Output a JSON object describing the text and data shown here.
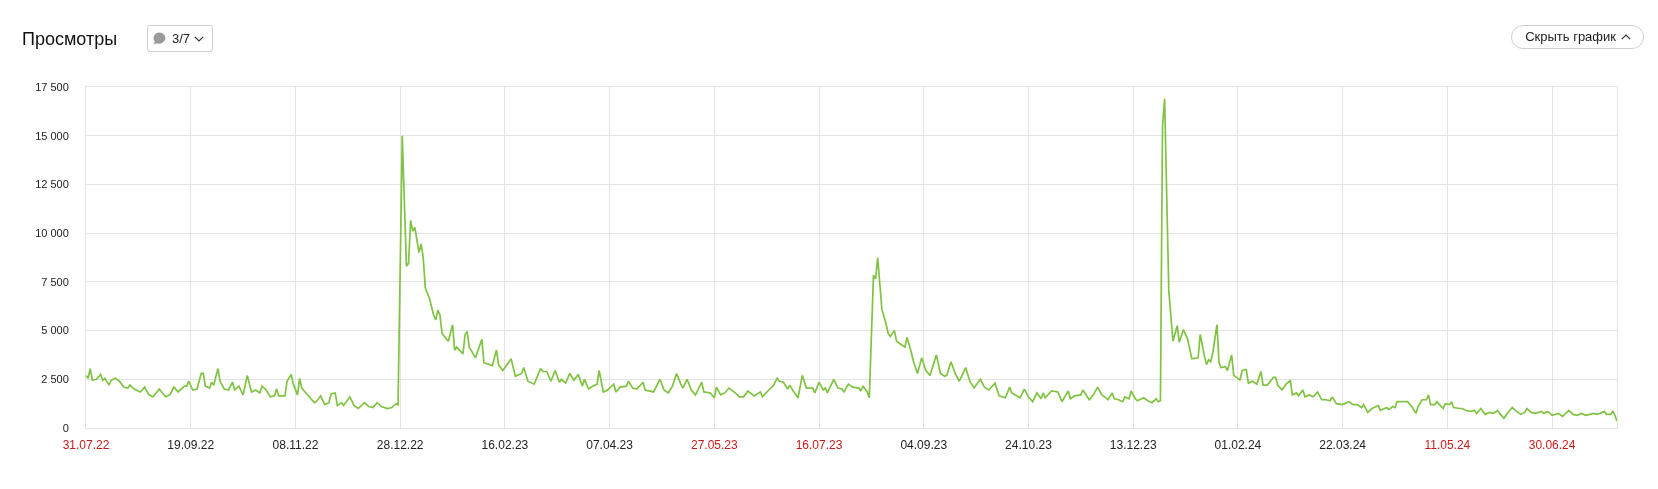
{
  "chart_data": {
    "type": "line",
    "title": "Просмотры",
    "annotations": [
      "3/7",
      "Скрыть график"
    ],
    "x": [
      "2022-07-31",
      "2022-08-01",
      "2022-08-02",
      "2022-08-03",
      "2022-08-05",
      "2022-08-07",
      "2022-08-08",
      "2022-08-09",
      "2022-08-11",
      "2022-08-12",
      "2022-08-14",
      "2022-08-16",
      "2022-08-18",
      "2022-08-20",
      "2022-08-21",
      "2022-08-23",
      "2022-08-26",
      "2022-08-28",
      "2022-08-30",
      "2022-09-01",
      "2022-09-04",
      "2022-09-07",
      "2022-09-09",
      "2022-09-11",
      "2022-09-13",
      "2022-09-16",
      "2022-09-17",
      "2022-09-18",
      "2022-09-20",
      "2022-09-22",
      "2022-09-24",
      "2022-09-25",
      "2022-09-26",
      "2022-09-28",
      "2022-09-29",
      "2022-09-30",
      "2022-10-02",
      "2022-10-03",
      "2022-10-05",
      "2022-10-07",
      "2022-10-09",
      "2022-10-10",
      "2022-10-12",
      "2022-10-14",
      "2022-10-16",
      "2022-10-18",
      "2022-10-20",
      "2022-10-22",
      "2022-10-23",
      "2022-10-25",
      "2022-10-27",
      "2022-10-29",
      "2022-10-30",
      "2022-10-31",
      "2022-11-03",
      "2022-11-04",
      "2022-11-06",
      "2022-11-07",
      "2022-11-09",
      "2022-11-10",
      "2022-11-11",
      "2022-11-13",
      "2022-11-15",
      "2022-11-17",
      "2022-11-18",
      "2022-11-20",
      "2022-11-22",
      "2022-11-24",
      "2022-11-25",
      "2022-11-27",
      "2022-11-28",
      "2022-11-30",
      "2022-12-01",
      "2022-12-04",
      "2022-12-06",
      "2022-12-08",
      "2022-12-11",
      "2022-12-13",
      "2022-12-15",
      "2022-12-17",
      "2022-12-19",
      "2022-12-22",
      "2022-12-24",
      "2022-12-26",
      "2022-12-27",
      "2022-12-29",
      "2022-12-31",
      "2023-01-01",
      "2023-01-02",
      "2023-01-03",
      "2023-01-04",
      "2023-01-06",
      "2023-01-07",
      "2023-01-08",
      "2023-01-09",
      "2023-01-11",
      "2023-01-13",
      "2023-01-14",
      "2023-01-15",
      "2023-01-16",
      "2023-01-17",
      "2023-01-20",
      "2023-01-22",
      "2023-01-23",
      "2023-01-24",
      "2023-01-27",
      "2023-01-28",
      "2023-01-29",
      "2023-01-30",
      "2023-02-02",
      "2023-02-05",
      "2023-02-06",
      "2023-02-10",
      "2023-02-12",
      "2023-02-13",
      "2023-02-15",
      "2023-02-19",
      "2023-02-21",
      "2023-02-24",
      "2023-02-25",
      "2023-02-27",
      "2023-03-02",
      "2023-03-05",
      "2023-03-06",
      "2023-03-08",
      "2023-03-10",
      "2023-03-12",
      "2023-03-14",
      "2023-03-15",
      "2023-03-17",
      "2023-03-19",
      "2023-03-21",
      "2023-03-23",
      "2023-03-25",
      "2023-03-26",
      "2023-03-28",
      "2023-03-30",
      "2023-04-01",
      "2023-04-02",
      "2023-04-04",
      "2023-04-06",
      "2023-04-09",
      "2023-04-10",
      "2023-04-12",
      "2023-04-15",
      "2023-04-16",
      "2023-04-18",
      "2023-04-20",
      "2023-04-23",
      "2023-04-24",
      "2023-04-28",
      "2023-05-01",
      "2023-05-03",
      "2023-05-05",
      "2023-05-07",
      "2023-05-09",
      "2023-05-11",
      "2023-05-12",
      "2023-05-14",
      "2023-05-16",
      "2023-05-18",
      "2023-05-21",
      "2023-05-22",
      "2023-05-25",
      "2023-05-27",
      "2023-05-28",
      "2023-05-30",
      "2023-06-01",
      "2023-06-03",
      "2023-06-06",
      "2023-06-08",
      "2023-06-10",
      "2023-06-12",
      "2023-06-15",
      "2023-06-18",
      "2023-06-19",
      "2023-06-22",
      "2023-06-24",
      "2023-06-26",
      "2023-06-27",
      "2023-06-29",
      "2023-07-01",
      "2023-07-02",
      "2023-07-04",
      "2023-07-06",
      "2023-07-08",
      "2023-07-10",
      "2023-07-13",
      "2023-07-14",
      "2023-07-16",
      "2023-07-18",
      "2023-07-19",
      "2023-07-20",
      "2023-07-23",
      "2023-07-25",
      "2023-07-27",
      "2023-07-28",
      "2023-07-30",
      "2023-08-01",
      "2023-08-04",
      "2023-08-05",
      "2023-08-06",
      "2023-08-08",
      "2023-08-09",
      "2023-08-11",
      "2023-08-12",
      "2023-08-13",
      "2023-08-15",
      "2023-08-17",
      "2023-08-18",
      "2023-08-19",
      "2023-08-21",
      "2023-08-22",
      "2023-08-24",
      "2023-08-26",
      "2023-08-27",
      "2023-08-29",
      "2023-08-30",
      "2023-09-01",
      "2023-09-03",
      "2023-09-05",
      "2023-09-07",
      "2023-09-08",
      "2023-09-10",
      "2023-09-12",
      "2023-09-14",
      "2023-09-15",
      "2023-09-17",
      "2023-09-19",
      "2023-09-21",
      "2023-09-24",
      "2023-09-26",
      "2023-09-28",
      "2023-10-01",
      "2023-10-03",
      "2023-10-05",
      "2023-10-08",
      "2023-10-10",
      "2023-10-13",
      "2023-10-15",
      "2023-10-16",
      "2023-10-20",
      "2023-10-22",
      "2023-10-24",
      "2023-10-26",
      "2023-10-28",
      "2023-10-30",
      "2023-10-31",
      "2023-11-01",
      "2023-11-04",
      "2023-11-07",
      "2023-11-09",
      "2023-11-12",
      "2023-11-13",
      "2023-11-15",
      "2023-11-18",
      "2023-11-19",
      "2023-11-22",
      "2023-11-24",
      "2023-11-26",
      "2023-11-28",
      "2023-11-30",
      "2023-12-01",
      "2023-12-03",
      "2023-12-04",
      "2023-12-06",
      "2023-12-08",
      "2023-12-09",
      "2023-12-11",
      "2023-12-12",
      "2023-12-14",
      "2023-12-15",
      "2023-12-18",
      "2023-12-20",
      "2023-12-22",
      "2023-12-24",
      "2023-12-25",
      "2023-12-26",
      "2023-12-27",
      "2023-12-28",
      "2023-12-30",
      "2024-01-01",
      "2024-01-03",
      "2024-01-04",
      "2024-01-06",
      "2024-01-08",
      "2024-01-10",
      "2024-01-13",
      "2024-01-14",
      "2024-01-16",
      "2024-01-17",
      "2024-01-18",
      "2024-01-19",
      "2024-01-20",
      "2024-01-22",
      "2024-01-23",
      "2024-01-24",
      "2024-01-26",
      "2024-01-27",
      "2024-01-29",
      "2024-01-30",
      "2024-02-01",
      "2024-02-02",
      "2024-02-03",
      "2024-02-05",
      "2024-02-06",
      "2024-02-08",
      "2024-02-10",
      "2024-02-12",
      "2024-02-13",
      "2024-02-15",
      "2024-02-18",
      "2024-02-19",
      "2024-02-20",
      "2024-02-22",
      "2024-02-24",
      "2024-02-26",
      "2024-02-27",
      "2024-02-29",
      "2024-03-01",
      "2024-03-03",
      "2024-03-04",
      "2024-03-06",
      "2024-03-08",
      "2024-03-10",
      "2024-03-12",
      "2024-03-14",
      "2024-03-16",
      "2024-03-17",
      "2024-03-19",
      "2024-03-22",
      "2024-03-25",
      "2024-03-27",
      "2024-03-29",
      "2024-03-31",
      "2024-04-01",
      "2024-04-03",
      "2024-04-05",
      "2024-04-08",
      "2024-04-09",
      "2024-04-12",
      "2024-04-13",
      "2024-04-15",
      "2024-04-16",
      "2024-04-17",
      "2024-04-20",
      "2024-04-22",
      "2024-04-24",
      "2024-04-26",
      "2024-04-27",
      "2024-04-29",
      "2024-05-01",
      "2024-05-02",
      "2024-05-03",
      "2024-05-05",
      "2024-05-06",
      "2024-05-09",
      "2024-05-10",
      "2024-05-12",
      "2024-05-13",
      "2024-05-14",
      "2024-05-17",
      "2024-05-18",
      "2024-05-20",
      "2024-05-22",
      "2024-05-24",
      "2024-05-25",
      "2024-05-27",
      "2024-05-29",
      "2024-05-31",
      "2024-06-02",
      "2024-06-04",
      "2024-06-05",
      "2024-06-07",
      "2024-06-09",
      "2024-06-11",
      "2024-06-13",
      "2024-06-15",
      "2024-06-17",
      "2024-06-18",
      "2024-06-20",
      "2024-06-22",
      "2024-06-25",
      "2024-06-26",
      "2024-06-28",
      "2024-06-30",
      "2024-07-03",
      "2024-07-05",
      "2024-07-08",
      "2024-07-10",
      "2024-07-12",
      "2024-07-14",
      "2024-07-16",
      "2024-07-18",
      "2024-07-20",
      "2024-07-21",
      "2024-07-23",
      "2024-07-25",
      "2024-07-26",
      "2024-07-28",
      "2024-07-29",
      "2024-07-30",
      "2024-07-31"
    ],
    "values": [
      2700,
      2550,
      3050,
      2450,
      2500,
      2750,
      2450,
      2550,
      2200,
      2450,
      2550,
      2400,
      2100,
      2050,
      2200,
      2000,
      1850,
      2100,
      1700,
      1600,
      2000,
      1600,
      1700,
      2100,
      1850,
      2150,
      2150,
      2400,
      1950,
      2000,
      2800,
      2800,
      2150,
      2050,
      2350,
      2200,
      3050,
      2400,
      2000,
      1950,
      2350,
      1950,
      2150,
      1700,
      2700,
      1850,
      1950,
      1800,
      2150,
      1950,
      1600,
      1650,
      2000,
      1650,
      1650,
      2400,
      2750,
      2250,
      1700,
      2550,
      2050,
      1800,
      1550,
      1300,
      1350,
      1650,
      1200,
      1300,
      1750,
      1800,
      1150,
      1300,
      1150,
      1600,
      1150,
      1000,
      1300,
      1100,
      1050,
      1300,
      1100,
      1000,
      1050,
      1250,
      1200,
      15000,
      8300,
      8450,
      10650,
      10100,
      10300,
      9000,
      9450,
      8750,
      7200,
      6650,
      5800,
      5550,
      6050,
      5800,
      4850,
      4450,
      5300,
      4000,
      4150,
      3800,
      4800,
      4950,
      4150,
      3600,
      4550,
      3350,
      3200,
      4000,
      3250,
      2950,
      3550,
      2650,
      2800,
      3100,
      2400,
      2250,
      3050,
      2900,
      2900,
      2400,
      2950,
      2350,
      2500,
      2300,
      2800,
      2450,
      2750,
      2150,
      2500,
      2000,
      2150,
      2250,
      2950,
      1850,
      1950,
      2250,
      1850,
      2100,
      2150,
      2400,
      2050,
      2000,
      2350,
      1950,
      1850,
      2500,
      1950,
      1800,
      2150,
      2800,
      2250,
      2050,
      2500,
      1950,
      1700,
      2350,
      1850,
      1800,
      1550,
      2100,
      1700,
      1800,
      2050,
      1800,
      1600,
      1600,
      1900,
      1650,
      1850,
      1600,
      1950,
      2150,
      2550,
      2400,
      2350,
      2000,
      2200,
      1850,
      1550,
      2700,
      2050,
      2050,
      1800,
      2350,
      1950,
      2050,
      1800,
      2500,
      2050,
      2000,
      1850,
      2250,
      2100,
      2050,
      1900,
      2150,
      1850,
      1550,
      7850,
      7650,
      8750,
      6100,
      5350,
      4850,
      4700,
      5000,
      4450,
      4300,
      4150,
      4650,
      3900,
      3450,
      2800,
      3600,
      2950,
      2700,
      3050,
      3750,
      2800,
      2650,
      2700,
      3400,
      2800,
      2400,
      3100,
      2400,
      2050,
      2500,
      2100,
      1950,
      2300,
      1650,
      1550,
      2100,
      1800,
      1550,
      2000,
      1600,
      1350,
      1800,
      1500,
      1800,
      1550,
      1900,
      1850,
      1350,
      1900,
      1500,
      1650,
      1700,
      1950,
      1450,
      1700,
      2100,
      1700,
      1550,
      1450,
      1800,
      1500,
      1450,
      1350,
      1600,
      1500,
      1900,
      1500,
      1400,
      1550,
      1400,
      1300,
      1500,
      1350,
      1400,
      15500,
      16900,
      7050,
      4450,
      5250,
      4400,
      5050,
      4550,
      3550,
      3600,
      4800,
      3700,
      3250,
      3500,
      3400,
      3850,
      5300,
      3350,
      3100,
      3150,
      2950,
      3750,
      2700,
      2550,
      2450,
      2950,
      3000,
      2300,
      2400,
      2250,
      2900,
      2200,
      2200,
      2600,
      2600,
      2200,
      1950,
      2250,
      2450,
      1700,
      1800,
      1650,
      1950,
      1600,
      1700,
      1600,
      1850,
      1450,
      1450,
      1400,
      1600,
      1250,
      1200,
      1350,
      1200,
      1200,
      1050,
      1200,
      800,
      1000,
      1150,
      900,
      1050,
      950,
      1100,
      1050,
      1350,
      1350,
      1350,
      1100,
      750,
      1100,
      1450,
      1450,
      1700,
      1200,
      1200,
      1350,
      1000,
      1250,
      1200,
      1350,
      1050,
      1000,
      1000,
      900,
      850,
      900,
      750,
      1000,
      700,
      800,
      750,
      900,
      750,
      500,
      800,
      1050,
      850,
      700,
      800,
      1000,
      800,
      750,
      850,
      750,
      850,
      650,
      750,
      600,
      900,
      700,
      650,
      750,
      650,
      700,
      750,
      700,
      750,
      850,
      700,
      700,
      850,
      650,
      350
    ],
    "color": "#80c342",
    "xlim": [
      "2022-07-31",
      "2024-07-31"
    ],
    "xticks": [
      {
        "value": "2022-07-31",
        "label": "31.07.22"
      },
      {
        "value": "2022-09-19",
        "label": "19.09.22"
      },
      {
        "value": "2022-11-08",
        "label": "08.11.22"
      },
      {
        "value": "2022-12-28",
        "label": "28.12.22"
      },
      {
        "value": "2023-02-16",
        "label": "16.02.23"
      },
      {
        "value": "2023-04-07",
        "label": "07.04.23"
      },
      {
        "value": "2023-05-27",
        "label": "27.05.23"
      },
      {
        "value": "2023-07-16",
        "label": "16.07.23"
      },
      {
        "value": "2023-09-04",
        "label": "04.09.23"
      },
      {
        "value": "2023-10-24",
        "label": "24.10.23"
      },
      {
        "value": "2023-12-13",
        "label": "13.12.23"
      },
      {
        "value": "2024-02-01",
        "label": "01.02.24"
      },
      {
        "value": "2024-03-22",
        "label": "22.03.24"
      },
      {
        "value": "2024-05-11",
        "label": "11.05.24"
      },
      {
        "value": "2024-06-30",
        "label": "30.06.24"
      }
    ],
    "ylim": [
      0,
      17500
    ],
    "yticks": [
      0,
      {
        "value": 2500,
        "label": "2 500"
      },
      {
        "value": 5000,
        "label": "5 000"
      },
      {
        "value": 7500,
        "label": "7 500"
      },
      {
        "value": 10000,
        "label": "10 000"
      },
      {
        "value": 12500,
        "label": "12 500"
      },
      {
        "value": 15000,
        "label": "15 000"
      },
      {
        "value": 17500,
        "label": "17 500"
      }
    ],
    "grid": true
  }
}
